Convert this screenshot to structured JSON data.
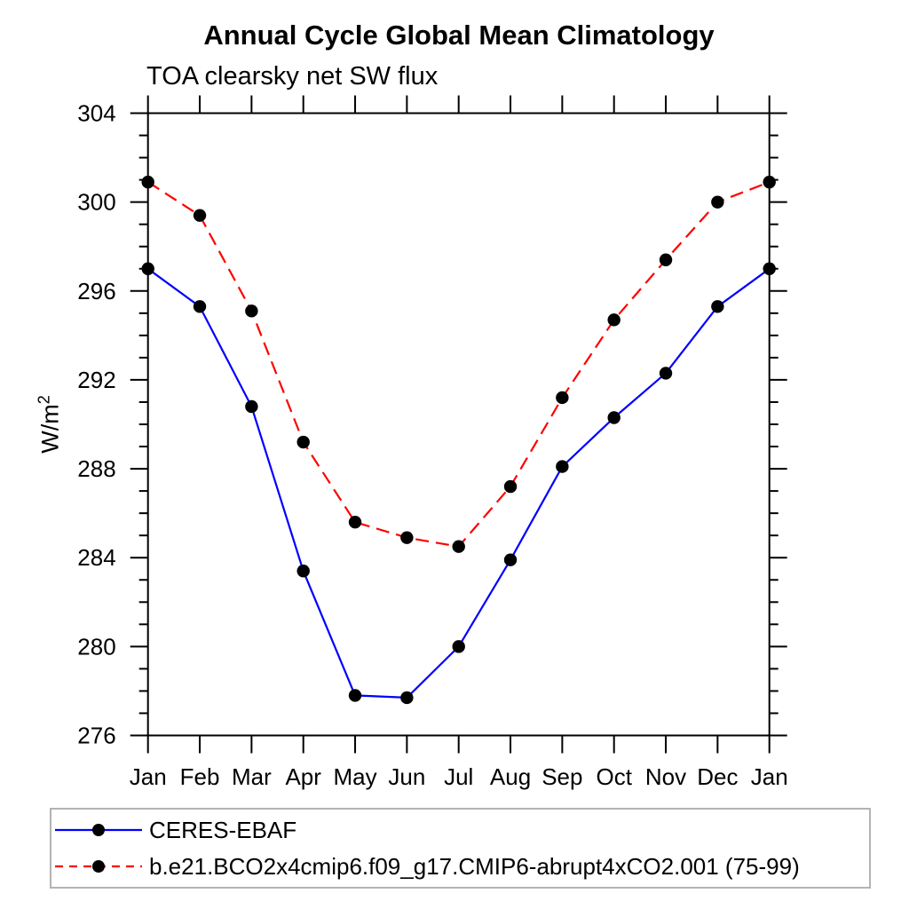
{
  "header": {
    "title": "Annual Cycle Global Mean Climatology",
    "subtitle": "TOA clearsky net SW flux"
  },
  "axes": {
    "ylabel_base": "W/m",
    "ylabel_exp": "2",
    "y_major_ticks": [
      "276",
      "280",
      "284",
      "288",
      "292",
      "296",
      "300",
      "304"
    ],
    "x_tick_labels": [
      "Jan",
      "Feb",
      "Mar",
      "Apr",
      "May",
      "Jun",
      "Jul",
      "Aug",
      "Sep",
      "Oct",
      "Nov",
      "Dec",
      "Jan"
    ]
  },
  "colors": {
    "ceres_line": "#0000ff",
    "model_line": "#ff0000",
    "marker": "#000000",
    "axis": "#000000",
    "legend_border": "#b3b3b3"
  },
  "legend": {
    "entries": [
      {
        "label": "CERES-EBAF",
        "line_style": "solid",
        "line_color": "#0000ff",
        "marker": "filled-circle"
      },
      {
        "label": "b.e21.BCO2x4cmip6.f09_g17.CMIP6-abrupt4xCO2.001 (75-99)",
        "line_style": "dashed",
        "line_color": "#ff0000",
        "marker": "filled-circle"
      }
    ]
  },
  "chart_data": {
    "type": "line",
    "title": "Annual Cycle Global Mean Climatology",
    "subtitle": "TOA clearsky net SW flux",
    "ylabel": "W/m^2",
    "xlabel": "",
    "categories": [
      "Jan",
      "Feb",
      "Mar",
      "Apr",
      "May",
      "Jun",
      "Jul",
      "Aug",
      "Sep",
      "Oct",
      "Nov",
      "Dec",
      "Jan"
    ],
    "ylim": [
      276,
      304
    ],
    "ytick_major_interval": 4,
    "ytick_minor_interval": 1,
    "grid": false,
    "tick_direction": "outward",
    "legend_position": "below-plot-boxed",
    "series": [
      {
        "name": "CERES-EBAF",
        "color": "#0000ff",
        "style": "solid",
        "marker": "filled-circle",
        "marker_color": "#000000",
        "values": [
          297.0,
          295.3,
          290.8,
          283.4,
          277.8,
          277.7,
          280.0,
          283.9,
          288.1,
          290.3,
          292.3,
          295.3,
          297.0
        ]
      },
      {
        "name": "b.e21.BCO2x4cmip6.f09_g17.CMIP6-abrupt4xCO2.001 (75-99)",
        "color": "#ff0000",
        "style": "dashed",
        "marker": "filled-circle",
        "marker_color": "#000000",
        "values": [
          300.9,
          299.4,
          295.1,
          289.2,
          285.6,
          284.9,
          284.5,
          287.2,
          291.2,
          294.7,
          297.4,
          300.0,
          300.9
        ]
      }
    ]
  }
}
